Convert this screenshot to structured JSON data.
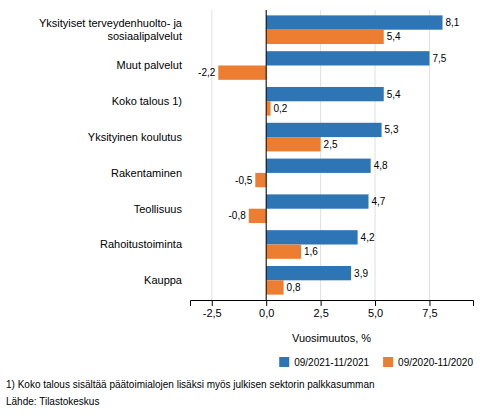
{
  "chart_data": {
    "type": "bar",
    "orientation": "horizontal",
    "categories": [
      "Kauppa",
      "Rahoitustoiminta",
      "Teollisuus",
      "Rakentaminen",
      "Yksityinen koulutus",
      "Koko talous 1)",
      "Muut palvelut",
      "Yksityiset terveydenhuolto- ja\nsosiaalipalvelut"
    ],
    "series": [
      {
        "name": "09/2021-11/2021",
        "color": "#2E75B6",
        "values": [
          3.9,
          4.2,
          4.7,
          4.8,
          5.3,
          5.4,
          7.5,
          8.1
        ],
        "value_labels": [
          "3,9",
          "4,2",
          "4,7",
          "4,8",
          "5,3",
          "5,4",
          "7,5",
          "8,1"
        ]
      },
      {
        "name": "09/2020-11/2020",
        "color": "#ED7D31",
        "values": [
          0.8,
          1.6,
          -0.8,
          -0.5,
          2.5,
          0.2,
          -2.2,
          5.4
        ],
        "value_labels": [
          "0,8",
          "1,6",
          "-0,8",
          "-0,5",
          "2,5",
          "0,2",
          "-2,2",
          "5,4"
        ]
      }
    ],
    "xlabel": "Vuosimuutos, %",
    "xlim": [
      -3.5,
      9.5
    ],
    "xticks": [
      {
        "value": -2.5,
        "label": "-2,5"
      },
      {
        "value": 0.0,
        "label": "0,0"
      },
      {
        "value": 2.5,
        "label": "2,5"
      },
      {
        "value": 5.0,
        "label": "5,0"
      },
      {
        "value": 7.5,
        "label": "7,5"
      }
    ],
    "grid": true,
    "legend": "lower right",
    "data_labels": true,
    "annotations": [
      "1) Koko talous sisältää päätoimialojen lisäksi myös julkisen sektorin palkkasumman",
      "Lähde: Tilastokeskus"
    ]
  }
}
